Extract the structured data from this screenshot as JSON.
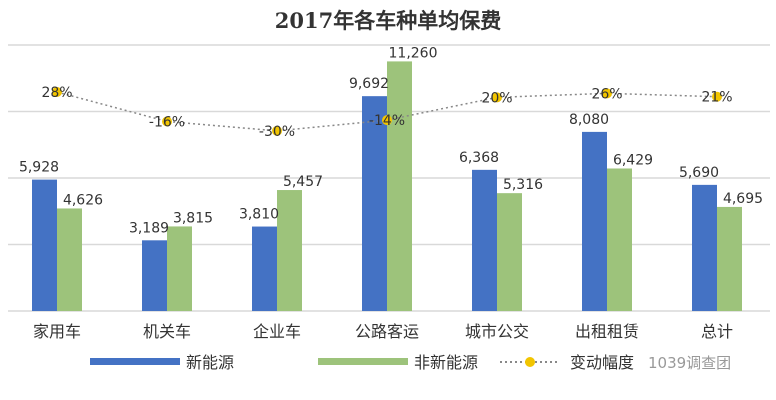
{
  "chart_data": {
    "type": "bar",
    "title": "2017年各车种单均保费",
    "categories": [
      "家用车",
      "机关车",
      "企业车",
      "公路客运",
      "城市公交",
      "出租租赁",
      "总计"
    ],
    "series": [
      {
        "name": "新能源",
        "type": "bar",
        "color": "#4472C4",
        "values": [
          5928,
          3189,
          3810,
          9692,
          6368,
          8080,
          5690
        ],
        "labels": [
          "5,928",
          "3,189",
          "3,810",
          "9,692",
          "6,368",
          "8,080",
          "5,690"
        ]
      },
      {
        "name": "非新能源",
        "type": "bar",
        "color": "#9DC37B",
        "values": [
          4626,
          3815,
          5457,
          11260,
          5316,
          6429,
          4695
        ],
        "labels": [
          "4,626",
          "3,815",
          "5,457",
          "11,260",
          "5,316",
          "6,429",
          "4,695"
        ]
      },
      {
        "name": "变动幅度",
        "type": "line",
        "style": "dotted",
        "color": "#888888",
        "marker_color": "#F2C500",
        "values": [
          28,
          -16,
          -30,
          -14,
          20,
          26,
          21
        ],
        "labels": [
          "28%",
          "-16%",
          "-30%",
          "-14%",
          "20%",
          "26%",
          "21%"
        ]
      }
    ],
    "ylim": [
      0,
      12000
    ],
    "grid": true,
    "legend": "bottom"
  },
  "watermark": "1039调查团"
}
